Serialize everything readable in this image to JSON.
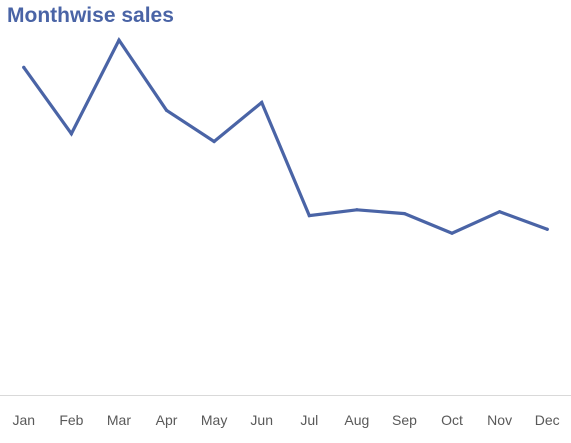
{
  "chart_data": {
    "type": "line",
    "title": "Monthwise sales",
    "xlabel": "",
    "ylabel": "",
    "categories": [
      "Jan",
      "Feb",
      "Mar",
      "Apr",
      "May",
      "Jun",
      "Jul",
      "Aug",
      "Sep",
      "Oct",
      "Nov",
      "Dec"
    ],
    "series": [
      {
        "values": [
          84,
          67,
          91,
          73,
          65,
          75,
          46,
          47.5,
          46.5,
          41.5,
          47,
          42.5
        ],
        "color": "#4a64a6"
      }
    ],
    "ylim": [
      0,
      100
    ],
    "value_scale_note": "relative",
    "grid": false,
    "legend": "none"
  }
}
